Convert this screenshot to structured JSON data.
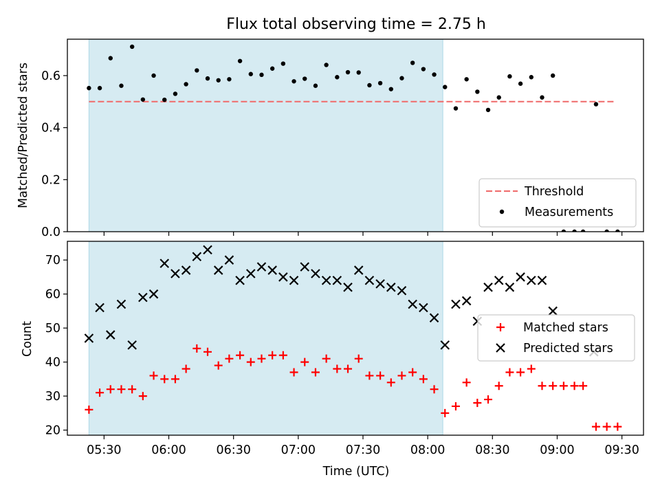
{
  "chart_data": [
    {
      "type": "scatter",
      "title": "Flux total observing time = 2.75 h",
      "xlabel": "",
      "ylabel": "Matched/Predicted stars",
      "xlim": [
        "05:13",
        "09:40"
      ],
      "ylim": [
        0,
        0.74
      ],
      "yticks": [
        "0.0",
        "0.2",
        "0.4",
        "0.6"
      ],
      "ytick_values": [
        0,
        0.2,
        0.4,
        0.6
      ],
      "shaded_span": [
        "05:23",
        "08:07"
      ],
      "shaded_color": "#add8e6",
      "threshold": {
        "value": 0.5,
        "from": "05:23",
        "to": "09:27",
        "color": "#f07070"
      },
      "legend": {
        "position": "lower right",
        "entries": [
          "Threshold",
          "Measurements"
        ]
      },
      "series": [
        {
          "name": "Measurements",
          "marker": "dot",
          "color": "#000000",
          "x": [
            "05:23",
            "05:28",
            "05:33",
            "05:38",
            "05:43",
            "05:48",
            "05:53",
            "05:58",
            "06:03",
            "06:08",
            "06:13",
            "06:18",
            "06:23",
            "06:28",
            "06:33",
            "06:38",
            "06:43",
            "06:48",
            "06:53",
            "06:58",
            "07:03",
            "07:08",
            "07:13",
            "07:18",
            "07:23",
            "07:28",
            "07:33",
            "07:38",
            "07:43",
            "07:48",
            "07:53",
            "07:58",
            "08:03",
            "08:08",
            "08:13",
            "08:18",
            "08:23",
            "08:28",
            "08:33",
            "08:38",
            "08:43",
            "08:48",
            "08:53",
            "08:58",
            "09:03",
            "09:08",
            "09:12",
            "09:18",
            "09:23",
            "09:28"
          ],
          "y": [
            0.552,
            0.552,
            0.667,
            0.561,
            0.711,
            0.508,
            0.6,
            0.507,
            0.53,
            0.567,
            0.62,
            0.589,
            0.582,
            0.586,
            0.656,
            0.606,
            0.603,
            0.627,
            0.646,
            0.578,
            0.588,
            0.561,
            0.641,
            0.594,
            0.613,
            0.612,
            0.563,
            0.571,
            0.548,
            0.59,
            0.649,
            0.625,
            0.604,
            0.556,
            0.474,
            0.586,
            0.538,
            0.468,
            0.516,
            0.597,
            0.569,
            0.594,
            0.516,
            0.6,
            0.0,
            0.0,
            0.0,
            0.49,
            0.0,
            0.0
          ]
        }
      ]
    },
    {
      "type": "scatter",
      "title": "",
      "xlabel": "Time (UTC)",
      "ylabel": "Count",
      "xlim": [
        "05:13",
        "09:40"
      ],
      "ylim": [
        18.5,
        75.5
      ],
      "xticks": [
        "05:30",
        "06:00",
        "06:30",
        "07:00",
        "07:30",
        "08:00",
        "08:30",
        "09:00",
        "09:30"
      ],
      "yticks": [
        "20",
        "30",
        "40",
        "50",
        "60",
        "70"
      ],
      "ytick_values": [
        20,
        30,
        40,
        50,
        60,
        70
      ],
      "shaded_span": [
        "05:23",
        "08:07"
      ],
      "shaded_color": "#add8e6",
      "legend": {
        "position": "center right",
        "entries": [
          "Matched stars",
          "Predicted stars"
        ]
      },
      "series": [
        {
          "name": "Matched stars",
          "marker": "plus",
          "color": "#ff0000",
          "x": [
            "05:23",
            "05:28",
            "05:33",
            "05:38",
            "05:43",
            "05:48",
            "05:53",
            "05:58",
            "06:03",
            "06:08",
            "06:13",
            "06:18",
            "06:23",
            "06:28",
            "06:33",
            "06:38",
            "06:43",
            "06:48",
            "06:53",
            "06:58",
            "07:03",
            "07:08",
            "07:13",
            "07:18",
            "07:23",
            "07:28",
            "07:33",
            "07:38",
            "07:43",
            "07:48",
            "07:53",
            "07:58",
            "08:03",
            "08:08",
            "08:13",
            "08:18",
            "08:23",
            "08:28",
            "08:33",
            "08:38",
            "08:43",
            "08:48",
            "08:53",
            "08:58",
            "09:03",
            "09:08",
            "09:12",
            "09:18",
            "09:23",
            "09:28"
          ],
          "y": [
            26,
            31,
            32,
            32,
            32,
            30,
            36,
            35,
            35,
            38,
            44,
            43,
            39,
            41,
            42,
            40,
            41,
            42,
            42,
            37,
            40,
            37,
            41,
            38,
            38,
            41,
            36,
            36,
            34,
            36,
            37,
            35,
            32,
            25,
            27,
            34,
            28,
            29,
            33,
            37,
            37,
            38,
            33,
            33,
            33,
            33,
            33,
            21,
            21,
            21
          ]
        },
        {
          "name": "Predicted stars",
          "marker": "x",
          "color": "#000000",
          "x": [
            "05:23",
            "05:28",
            "05:33",
            "05:38",
            "05:43",
            "05:48",
            "05:53",
            "05:58",
            "06:03",
            "06:08",
            "06:13",
            "06:18",
            "06:23",
            "06:28",
            "06:33",
            "06:38",
            "06:43",
            "06:48",
            "06:53",
            "06:58",
            "07:03",
            "07:08",
            "07:13",
            "07:18",
            "07:23",
            "07:28",
            "07:33",
            "07:38",
            "07:43",
            "07:48",
            "07:53",
            "07:58",
            "08:03",
            "08:08",
            "08:13",
            "08:18",
            "08:23",
            "08:28",
            "08:33",
            "08:38",
            "08:43",
            "08:48",
            "08:53",
            "08:58",
            "09:17"
          ],
          "y": [
            47,
            56,
            48,
            57,
            45,
            59,
            60,
            69,
            66,
            67,
            71,
            73,
            67,
            70,
            64,
            66,
            68,
            67,
            65,
            64,
            68,
            66,
            64,
            64,
            62,
            67,
            64,
            63,
            62,
            61,
            57,
            56,
            53,
            45,
            57,
            58,
            52,
            62,
            64,
            62,
            65,
            64,
            64,
            55,
            43
          ]
        }
      ]
    }
  ]
}
